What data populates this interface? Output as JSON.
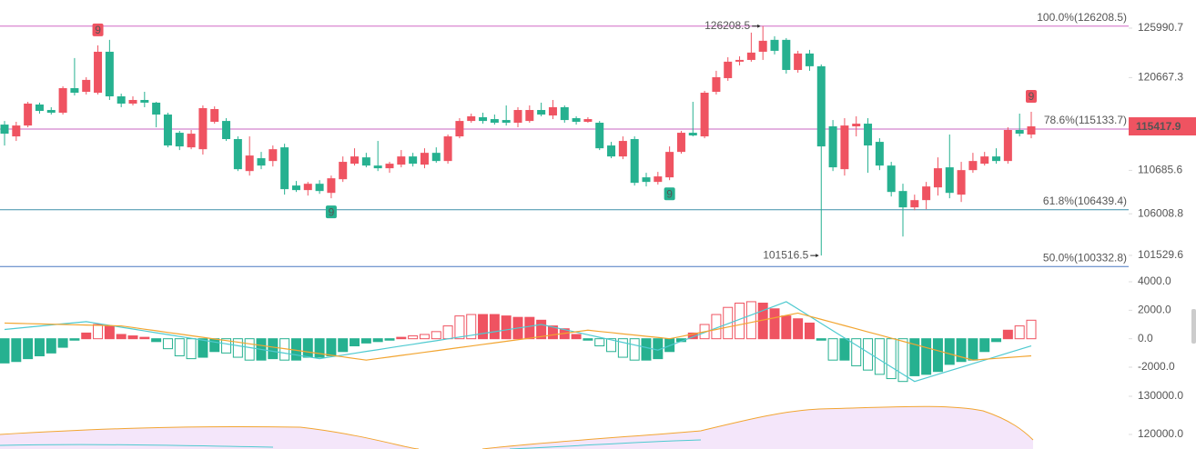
{
  "chart_data": [
    {
      "type": "candlestick",
      "open": [
        115610,
        114340,
        115510,
        117770,
        117180,
        116890,
        119530,
        119140,
        119040,
        123450,
        118650,
        117870,
        118260,
        117970,
        116690,
        114730,
        113160,
        112960,
        115910,
        116000,
        114050,
        110610,
        111990,
        111690,
        113160,
        109050,
        108560,
        109240,
        108260,
        109730,
        111400,
        112080,
        111200,
        110910,
        111300,
        112180,
        111300,
        112570,
        111690,
        114340,
        116000,
        116400,
        116200,
        116100,
        115810,
        116000,
        117180,
        116590,
        117480,
        116300,
        115910,
        115810,
        113360,
        112180,
        114050,
        109930,
        109440,
        109930,
        112670,
        114730,
        114340,
        119140,
        120610,
        122380,
        122570,
        123450,
        124730,
        124730,
        121490,
        123260,
        121890,
        115420,
        110810,
        115420,
        115710,
        113750,
        111200,
        108460,
        106700,
        107480,
        108850,
        111010,
        108070,
        110710,
        111400,
        112180,
        111690,
        115030,
        114540
      ],
      "high": [
        116000,
        115910,
        118060,
        117970,
        117480,
        119730,
        122770,
        120710,
        124140,
        124730,
        118940,
        118650,
        119140,
        118060,
        116890,
        114930,
        115030,
        117670,
        117570,
        116300,
        114340,
        114340,
        112670,
        113360,
        113550,
        109540,
        109440,
        109630,
        110120,
        112180,
        113060,
        112570,
        113850,
        111600,
        112870,
        112570,
        113060,
        113160,
        114540,
        116300,
        116790,
        116890,
        116690,
        117670,
        117480,
        117670,
        117970,
        118260,
        117670,
        116500,
        116400,
        116000,
        113750,
        114340,
        114340,
        110420,
        110520,
        113260,
        114930,
        118060,
        119240,
        121400,
        122860,
        122960,
        125510,
        126208.5,
        125120,
        124920,
        123550,
        123650,
        122080,
        116100,
        116300,
        116500,
        116300,
        114140,
        111600,
        109240,
        108070,
        109440,
        112080,
        114540,
        111600,
        112570,
        112670,
        113060,
        115320,
        116790,
        116990
      ],
      "low": [
        113360,
        113850,
        115320,
        116790,
        116690,
        116690,
        118750,
        118850,
        118850,
        118260,
        117480,
        117670,
        117480,
        115320,
        113160,
        112870,
        112960,
        112380,
        115710,
        113850,
        110610,
        110120,
        110810,
        111100,
        108070,
        108360,
        107970,
        108160,
        107680,
        109440,
        111200,
        111010,
        110610,
        110420,
        111010,
        111100,
        110910,
        111500,
        111400,
        114140,
        115810,
        115710,
        115610,
        115510,
        115320,
        115810,
        116500,
        116200,
        115810,
        115610,
        115810,
        112870,
        111990,
        111890,
        109050,
        108950,
        109150,
        109630,
        112480,
        114340,
        114140,
        118850,
        120320,
        121980,
        122380,
        122570,
        123160,
        121100,
        121200,
        121400,
        101516.5,
        110610,
        110120,
        114340,
        110420,
        110710,
        107870,
        103560,
        106400,
        106500,
        107970,
        107680,
        107280,
        110420,
        111200,
        111400,
        111400,
        114340,
        114140
      ],
      "close": [
        114630,
        115510,
        117870,
        117080,
        116890,
        119530,
        119040,
        120420,
        123450,
        118650,
        117870,
        118260,
        117970,
        116690,
        113360,
        113260,
        114630,
        117380,
        117280,
        114050,
        110810,
        112280,
        111200,
        112960,
        108660,
        108560,
        109240,
        108460,
        109830,
        111600,
        112180,
        111200,
        110910,
        111400,
        112180,
        111400,
        112570,
        111690,
        114340,
        116000,
        116500,
        116000,
        115810,
        115810,
        117180,
        117180,
        116690,
        117480,
        116100,
        115910,
        116200,
        113060,
        112180,
        113850,
        109340,
        109440,
        110030,
        112670,
        114730,
        114440,
        119040,
        120710,
        122380,
        122570,
        123360,
        124630,
        123550,
        121490,
        123260,
        121890,
        113260,
        111010,
        115510,
        115710,
        113360,
        111200,
        108360,
        106700,
        107480,
        108950,
        110910,
        108260,
        110710,
        111690,
        112180,
        111690,
        115030,
        114630,
        115417.9
      ],
      "up_color": "#ef5361",
      "down_color": "#26b190",
      "ylim": [
        99670,
        129020
      ],
      "yticks": [
        125990.7,
        120667.3,
        110685.6,
        106008.8,
        101529.6
      ],
      "fib_levels": [
        {
          "label": "100.0%(126208.5)",
          "value": 126208.5,
          "color": "#d06ac6"
        },
        {
          "label": "78.6%(115133.7)",
          "value": 115133.7,
          "color": "#c865c0"
        },
        {
          "label": "61.8%(106439.4)",
          "value": 106439.4,
          "color": "#3f8faa"
        },
        {
          "label": "50.0%(100332.8)",
          "value": 100332.8,
          "color": "#4a78c2"
        }
      ],
      "td_marks": [
        {
          "index": 8,
          "label": "9",
          "position": "above",
          "color": "#ef5361"
        },
        {
          "index": 28,
          "label": "9",
          "position": "below",
          "color": "#26b190"
        },
        {
          "index": 57,
          "label": "9",
          "position": "below",
          "color": "#26b190"
        },
        {
          "index": 88,
          "label": "9",
          "position": "above",
          "color": "#ef5361"
        }
      ]
    },
    {
      "type": "macd",
      "histogram": [
        -1700,
        -1600,
        -1400,
        -1200,
        -1000,
        -600,
        -100,
        400,
        1000,
        900,
        300,
        200,
        100,
        -200,
        -700,
        -1200,
        -1400,
        -1300,
        -900,
        -1000,
        -1300,
        -1500,
        -1500,
        -1400,
        -1500,
        -1500,
        -1300,
        -1300,
        -1200,
        -900,
        -500,
        -300,
        -200,
        -100,
        100,
        200,
        300,
        500,
        900,
        1600,
        1700,
        1700,
        1700,
        1600,
        1500,
        1500,
        1300,
        900,
        700,
        300,
        -100,
        -500,
        -900,
        -1300,
        -1500,
        -1500,
        -1400,
        -900,
        -200,
        400,
        1000,
        1700,
        2200,
        2500,
        2600,
        2500,
        2100,
        1600,
        1400,
        1100,
        -100,
        -1500,
        -1500,
        -1900,
        -2200,
        -2500,
        -2800,
        -3000,
        -2600,
        -2500,
        -2300,
        -1800,
        -1600,
        -1500,
        -900,
        -200,
        600,
        900,
        1300
      ],
      "up_color": "#ef5361",
      "down_color": "#26b190",
      "series": [
        {
          "color": "#4fcad0",
          "values": [
            650,
            730,
            810,
            890,
            970,
            1050,
            1120,
            1200,
            1070,
            940,
            810,
            680,
            550,
            420,
            290,
            160,
            30,
            -100,
            -230,
            -360,
            -490,
            -620,
            -750,
            -880,
            -1010,
            -1140,
            -1270,
            -1400,
            -1270,
            -1150,
            -1020,
            -890,
            -770,
            -640,
            -510,
            -390,
            -260,
            -140,
            -10,
            120,
            240,
            370,
            490,
            620,
            750,
            870,
            1000,
            820,
            640,
            460,
            280,
            100,
            -80,
            -260,
            -440,
            -620,
            -800,
            -490,
            -180,
            130,
            440,
            750,
            1050,
            1360,
            1670,
            1980,
            2290,
            2600,
            2090,
            1580,
            1070,
            560,
            50,
            -450,
            -960,
            -1470,
            -1980,
            -2490,
            -3000,
            -2750,
            -2500,
            -2250,
            -2000,
            -1750,
            -1500,
            -1250,
            -1000,
            -750,
            -500
          ]
        },
        {
          "color": "#f2a531",
          "values": [
            1100,
            1080,
            1060,
            1040,
            1020,
            1000,
            980,
            960,
            940,
            920,
            900,
            790,
            670,
            560,
            440,
            330,
            210,
            100,
            -20,
            -130,
            -240,
            -360,
            -470,
            -590,
            -700,
            -810,
            -930,
            -1040,
            -1160,
            -1270,
            -1390,
            -1500,
            -1390,
            -1280,
            -1170,
            -1060,
            -950,
            -840,
            -730,
            -620,
            -510,
            -400,
            -290,
            -180,
            -70,
            40,
            150,
            270,
            380,
            490,
            600,
            510,
            430,
            340,
            260,
            170,
            90,
            0,
            160,
            330,
            490,
            650,
            820,
            980,
            1150,
            1310,
            1470,
            1640,
            1800,
            1580,
            1360,
            1140,
            920,
            700,
            480,
            260,
            40,
            -180,
            -400,
            -620,
            -840,
            -1060,
            -1280,
            -1500,
            -1440,
            -1380,
            -1320,
            -1260,
            -1200
          ]
        }
      ],
      "ylim": [
        -3530,
        4510
      ],
      "yticks": [
        {
          "value": 4000,
          "label": "4000.0"
        },
        {
          "value": 2000,
          "label": "2000.0"
        },
        {
          "value": 0,
          "label": "0.0"
        },
        {
          "value": -2000,
          "label": "-2000.0"
        }
      ]
    },
    {
      "type": "bollinger",
      "ylim": [
        116190,
        131900
      ],
      "yticks": [
        {
          "value": 130000,
          "label": "130000.0"
        },
        {
          "value": 120000,
          "label": "120000.0"
        }
      ]
    }
  ]
}
